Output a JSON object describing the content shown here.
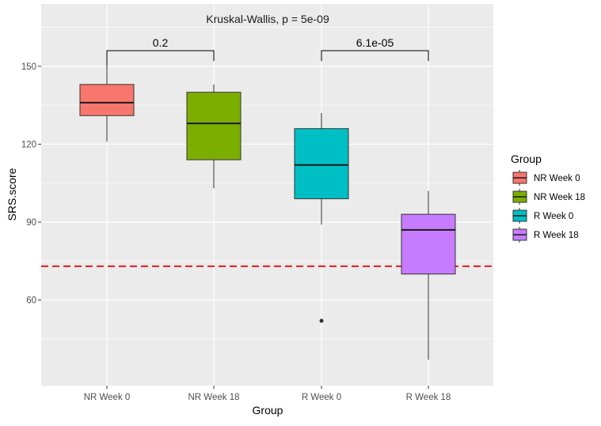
{
  "chart_data": {
    "type": "box",
    "title": "Kruskal-Wallis, p = 5e-09",
    "xlabel": "Group",
    "ylabel": "SRS.score",
    "ylim": [
      27,
      174
    ],
    "yticks": [
      60,
      90,
      120,
      150
    ],
    "grid": true,
    "categories": [
      "NR Week 0",
      "NR Week 18",
      "R Week 0",
      "R Week 18"
    ],
    "boxes": [
      {
        "label": "NR Week 0",
        "color": "#F8766D",
        "whisker_low": 121,
        "q1": 131,
        "median": 136,
        "q3": 143,
        "whisker_high": 156,
        "outliers": []
      },
      {
        "label": "NR Week 18",
        "color": "#7CAE00",
        "whisker_low": 103,
        "q1": 114,
        "median": 128,
        "q3": 140,
        "whisker_high": 143,
        "outliers": []
      },
      {
        "label": "R Week 0",
        "color": "#00BFC4",
        "whisker_low": 89,
        "q1": 99,
        "median": 112,
        "q3": 126,
        "whisker_high": 132,
        "outliers": [
          52
        ]
      },
      {
        "label": "R Week 18",
        "color": "#C77CFF",
        "whisker_low": 37,
        "q1": 70,
        "median": 87,
        "q3": 93,
        "whisker_high": 102,
        "outliers": []
      }
    ],
    "reference_line": {
      "y": 73,
      "color": "#E41A1C",
      "style": "dashed"
    },
    "comparisons": [
      {
        "from": 0,
        "to": 1,
        "label": "0.2",
        "y": 156,
        "drop_left": 150,
        "drop_right": 152
      },
      {
        "from": 2,
        "to": 3,
        "label": "6.1e-05",
        "y": 156,
        "drop_left": 152,
        "drop_right": 152
      }
    ],
    "legend": {
      "title": "Group",
      "position": "right",
      "items": [
        "NR Week 0",
        "NR Week 18",
        "R Week 0",
        "R Week 18"
      ]
    }
  }
}
